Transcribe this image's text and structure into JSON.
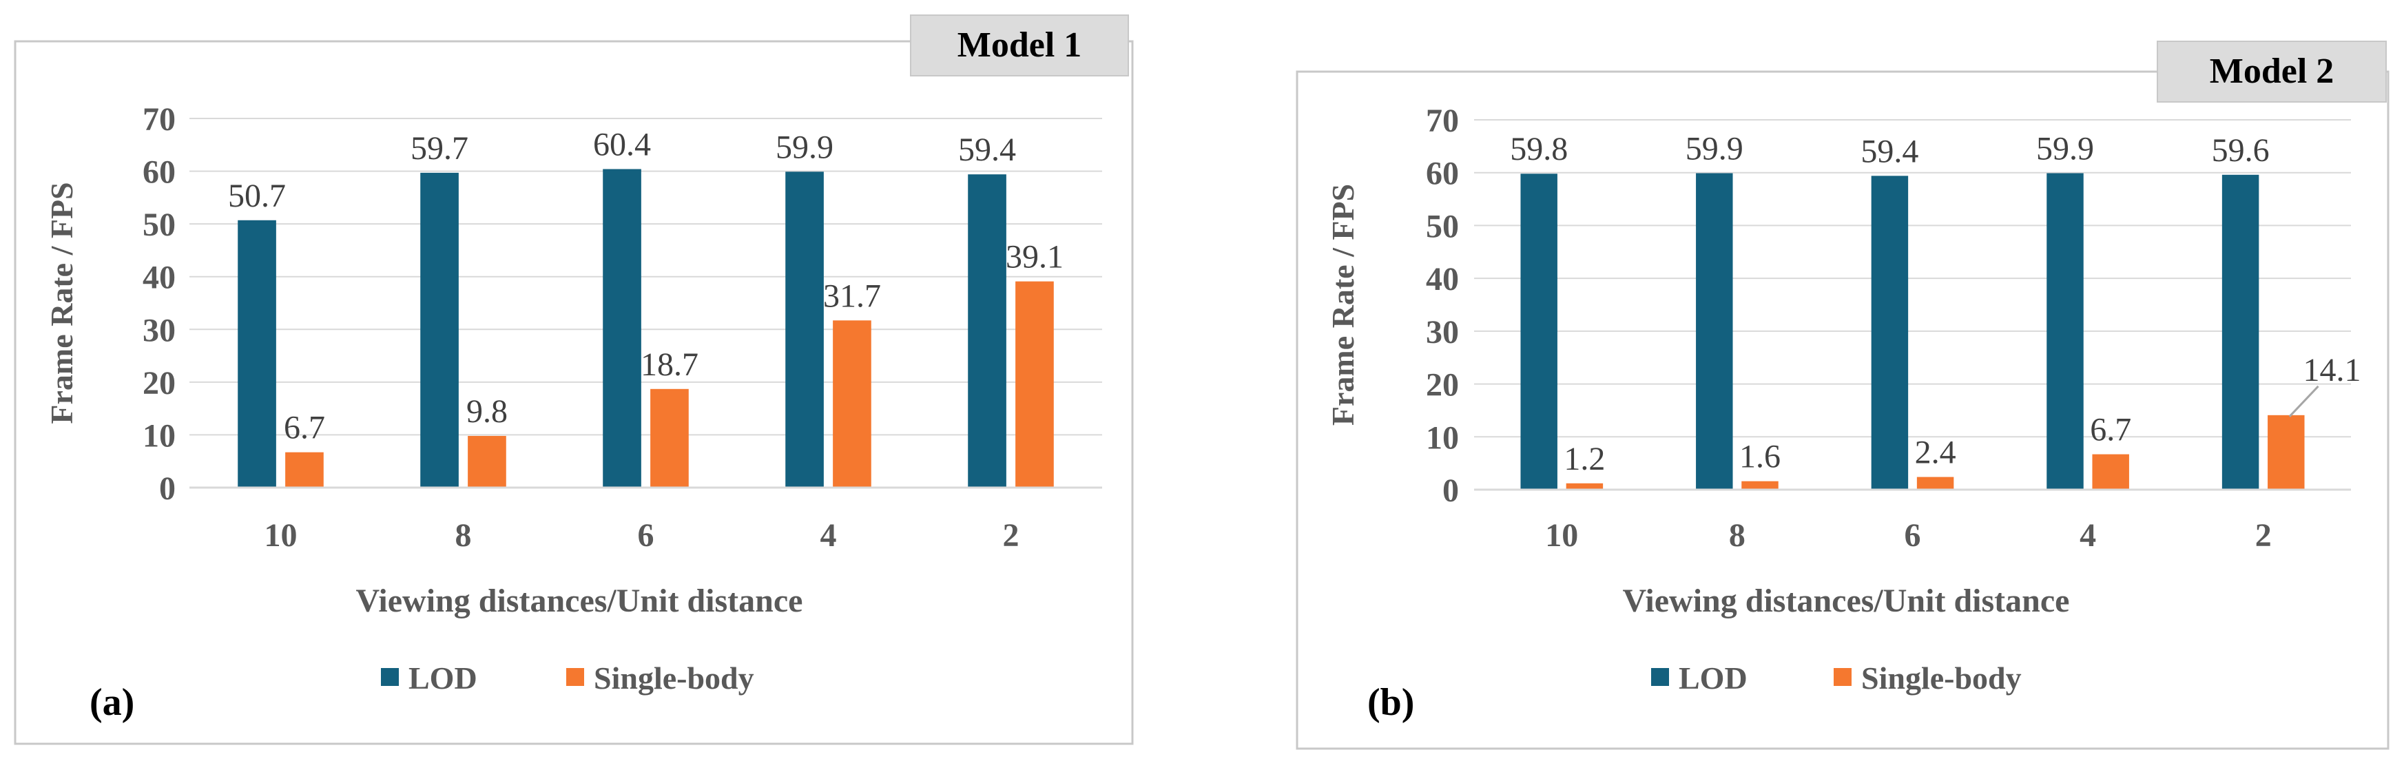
{
  "colors": {
    "lod": "#13607E",
    "single_body": "#F5782F",
    "axis_text": "#595959",
    "grid": "#D9D9D9",
    "panel_border": "#C8C8C8",
    "tag_background": "#DCDCDC"
  },
  "chart_data": [
    {
      "type": "bar",
      "panel_label": "(a)",
      "title": "Model 1",
      "xlabel": "Viewing distances/Unit distance",
      "ylabel": "Frame Rate / FPS",
      "ylim": [
        0,
        70
      ],
      "yticks": [
        0,
        10,
        20,
        30,
        40,
        50,
        60,
        70
      ],
      "categories": [
        "10",
        "8",
        "6",
        "4",
        "2"
      ],
      "series": [
        {
          "name": "LOD",
          "values": [
            50.7,
            59.7,
            60.4,
            59.9,
            59.4
          ],
          "labels": [
            "50.7",
            "59.7",
            "60.4",
            "59.9",
            "59.4"
          ]
        },
        {
          "name": "Single-body",
          "values": [
            6.7,
            9.8,
            18.7,
            31.7,
            39.1
          ],
          "labels": [
            "6.7",
            "9.8",
            "18.7",
            "31.7",
            "39.1"
          ]
        }
      ],
      "legend": "bottom-center",
      "grid": true
    },
    {
      "type": "bar",
      "panel_label": "(b)",
      "title": "Model 2",
      "xlabel": "Viewing distances/Unit distance",
      "ylabel": "Frame Rate / FPS",
      "ylim": [
        0,
        70
      ],
      "yticks": [
        0,
        10,
        20,
        30,
        40,
        50,
        60,
        70
      ],
      "categories": [
        "10",
        "8",
        "6",
        "4",
        "2"
      ],
      "series": [
        {
          "name": "LOD",
          "values": [
            59.8,
            59.9,
            59.4,
            59.9,
            59.6
          ],
          "labels": [
            "59.8",
            "59.9",
            "59.4",
            "59.9",
            "59.6"
          ]
        },
        {
          "name": "Single-body",
          "values": [
            1.2,
            1.6,
            2.4,
            6.7,
            14.1
          ],
          "labels": [
            "1.2",
            "1.6",
            "2.4",
            "6.7",
            "14.1"
          ]
        }
      ],
      "legend": "bottom-center",
      "grid": true
    }
  ]
}
